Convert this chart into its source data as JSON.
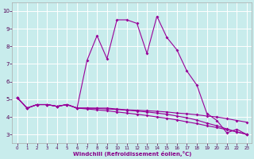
{
  "xlabel": "Windchill (Refroidissement éolien,°C)",
  "bg_color": "#c8ecec",
  "grid_color": "#ffffff",
  "line_color": "#990099",
  "x_ticks": [
    0,
    1,
    2,
    3,
    4,
    5,
    6,
    7,
    8,
    9,
    10,
    11,
    12,
    13,
    14,
    15,
    16,
    17,
    18,
    19,
    20,
    21,
    22,
    23
  ],
  "y_ticks": [
    3,
    4,
    5,
    6,
    7,
    8,
    9,
    10
  ],
  "ylim": [
    2.5,
    10.5
  ],
  "xlim": [
    -0.5,
    23.5
  ],
  "series": [
    {
      "x": [
        0,
        1,
        2,
        3,
        4,
        5,
        6,
        7,
        8,
        9,
        10,
        11,
        12,
        13,
        14,
        15,
        16,
        17,
        18,
        19,
        20,
        21,
        22,
        23
      ],
      "y": [
        5.1,
        4.5,
        4.7,
        4.7,
        4.6,
        4.7,
        4.5,
        7.2,
        8.6,
        7.3,
        9.5,
        9.5,
        9.3,
        7.6,
        9.7,
        8.5,
        7.8,
        6.6,
        5.8,
        4.2,
        3.8,
        3.1,
        3.3,
        3.0
      ]
    },
    {
      "x": [
        0,
        1,
        2,
        3,
        4,
        5,
        6,
        7,
        8,
        9,
        10,
        11,
        12,
        13,
        14,
        15,
        16,
        17,
        18,
        19,
        20,
        21,
        22,
        23
      ],
      "y": [
        5.1,
        4.5,
        4.7,
        4.7,
        4.6,
        4.7,
        4.5,
        4.5,
        4.5,
        4.5,
        4.45,
        4.4,
        4.38,
        4.35,
        4.32,
        4.28,
        4.22,
        4.18,
        4.12,
        4.05,
        4.0,
        3.9,
        3.8,
        3.7
      ]
    },
    {
      "x": [
        0,
        1,
        2,
        3,
        4,
        5,
        6,
        7,
        8,
        9,
        10,
        11,
        12,
        13,
        14,
        15,
        16,
        17,
        18,
        19,
        20,
        21,
        22,
        23
      ],
      "y": [
        5.1,
        4.5,
        4.7,
        4.7,
        4.6,
        4.7,
        4.5,
        4.45,
        4.4,
        4.35,
        4.28,
        4.22,
        4.15,
        4.08,
        4.0,
        3.92,
        3.83,
        3.72,
        3.62,
        3.5,
        3.4,
        3.28,
        3.15,
        3.02
      ]
    },
    {
      "x": [
        0,
        1,
        2,
        3,
        4,
        5,
        6,
        7,
        8,
        9,
        10,
        11,
        12,
        13,
        14,
        15,
        16,
        17,
        18,
        19,
        20,
        21,
        22,
        23
      ],
      "y": [
        5.1,
        4.5,
        4.7,
        4.7,
        4.6,
        4.7,
        4.5,
        4.5,
        4.48,
        4.45,
        4.42,
        4.38,
        4.33,
        4.28,
        4.22,
        4.15,
        4.05,
        3.95,
        3.82,
        3.65,
        3.5,
        3.32,
        3.15,
        3.0
      ]
    }
  ]
}
